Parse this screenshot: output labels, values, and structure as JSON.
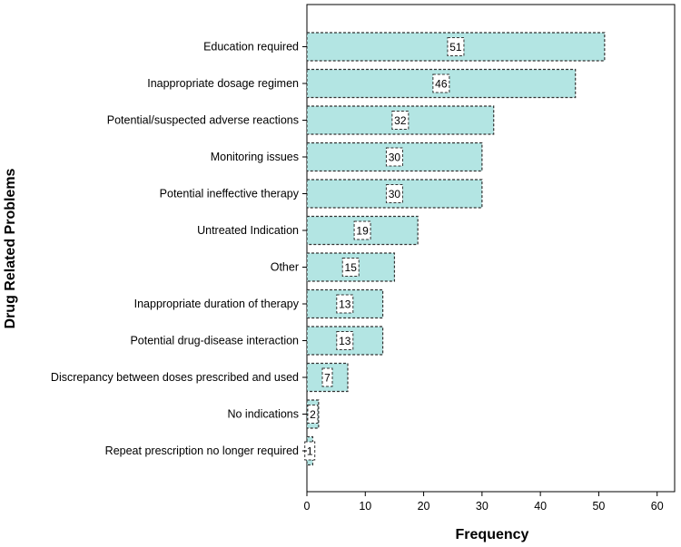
{
  "chart_data": {
    "type": "bar",
    "orientation": "horizontal",
    "title": "",
    "xlabel": "Frequency",
    "ylabel": "Drug Related Problems",
    "categories": [
      "Education required",
      "Inappropriate dosage regimen",
      "Potential/suspected adverse reactions",
      "Monitoring issues",
      "Potential ineffective therapy",
      "Untreated Indication",
      "Other",
      "Inappropriate duration of therapy",
      "Potential drug-disease interaction",
      "Discrepancy between doses prescribed and used",
      "No indications",
      "Repeat prescription no longer required"
    ],
    "values": [
      51,
      46,
      32,
      30,
      30,
      19,
      15,
      13,
      13,
      7,
      2,
      1
    ],
    "data_labels": [
      "51",
      "46",
      "32",
      "30",
      "30",
      "19",
      "15",
      "13",
      "13",
      "7",
      "2",
      "1"
    ],
    "xlim": [
      0,
      63
    ],
    "xticks": [
      0,
      10,
      20,
      30,
      40,
      50,
      60
    ],
    "xtick_labels": [
      "0",
      "10",
      "20",
      "30",
      "40",
      "50",
      "60"
    ],
    "grid": false,
    "bar_color": "#b3e5e3",
    "bar_edge_color": "#333333"
  }
}
